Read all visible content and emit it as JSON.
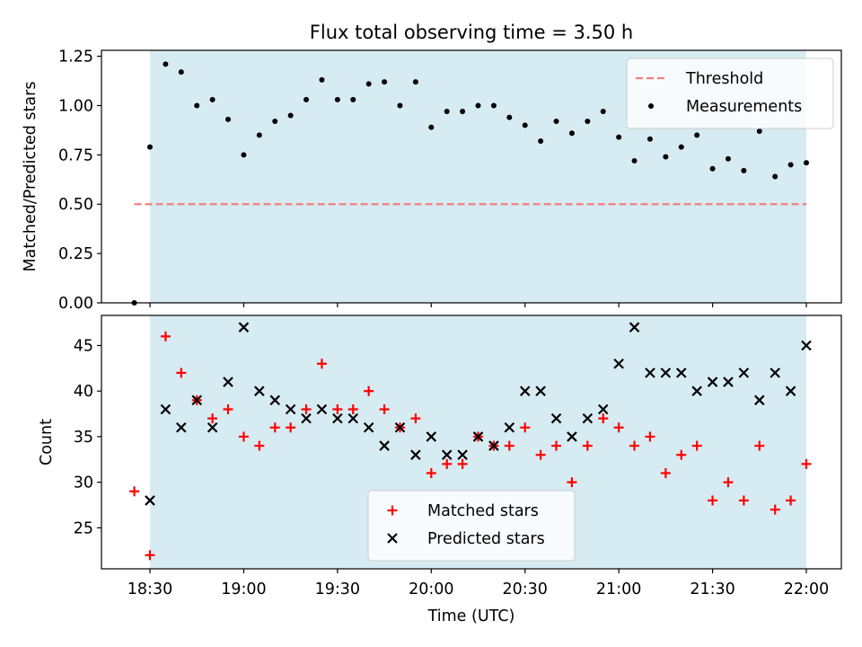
{
  "chart_data": {
    "type": "scatter",
    "title": "Flux total observing time = 3.50 h",
    "xlabel": "Time (UTC)",
    "x_tick_labels": [
      "18:30",
      "19:00",
      "19:30",
      "20:00",
      "20:30",
      "21:00",
      "21:30",
      "22:00"
    ],
    "times": [
      "18:25",
      "18:30",
      "18:35",
      "18:40",
      "18:45",
      "18:50",
      "18:55",
      "19:00",
      "19:05",
      "19:10",
      "19:15",
      "19:20",
      "19:25",
      "19:30",
      "19:35",
      "19:40",
      "19:45",
      "19:50",
      "19:55",
      "20:00",
      "20:05",
      "20:10",
      "20:15",
      "20:20",
      "20:25",
      "20:30",
      "20:35",
      "20:40",
      "20:45",
      "20:50",
      "20:55",
      "21:00",
      "21:05",
      "21:10",
      "21:15",
      "21:20",
      "21:25",
      "21:30",
      "21:35",
      "21:40",
      "21:45",
      "21:50",
      "21:55",
      "22:00"
    ],
    "shaded_interval": [
      "18:30",
      "22:00"
    ],
    "shade_color": "#add8e6",
    "panels": [
      {
        "ylabel": "Matched/Predicted stars",
        "ylim": [
          0,
          1.28
        ],
        "y_ticks": [
          "0.00",
          "0.25",
          "0.50",
          "0.75",
          "1.00",
          "1.25"
        ],
        "threshold": {
          "name": "Threshold",
          "value": 0.5,
          "x_range": [
            "18:25",
            "22:00"
          ],
          "color": "#f08080"
        },
        "series": [
          {
            "name": "Measurements",
            "marker": "dot",
            "color": "#000000",
            "values": [
              0.0,
              0.79,
              1.21,
              1.17,
              1.0,
              1.03,
              0.93,
              0.75,
              0.85,
              0.92,
              0.95,
              1.03,
              1.13,
              1.03,
              1.03,
              1.11,
              1.12,
              1.0,
              1.12,
              0.89,
              0.97,
              0.97,
              1.0,
              1.0,
              0.94,
              0.9,
              0.82,
              0.92,
              0.86,
              0.92,
              0.97,
              0.84,
              0.72,
              0.83,
              0.74,
              0.79,
              0.85,
              0.68,
              0.73,
              0.67,
              0.87,
              0.64,
              0.7,
              0.71
            ]
          }
        ],
        "legend_position": "top-right"
      },
      {
        "ylabel": "Count",
        "ylim": [
          20.5,
          48.3
        ],
        "y_ticks": [
          "25",
          "30",
          "35",
          "40",
          "45"
        ],
        "series": [
          {
            "name": "Matched stars",
            "marker": "plus",
            "color": "#ff0000",
            "values": [
              29,
              22,
              46,
              42,
              39,
              37,
              38,
              35,
              34,
              36,
              36,
              38,
              43,
              38,
              38,
              40,
              38,
              36,
              37,
              31,
              32,
              32,
              35,
              34,
              34,
              36,
              33,
              34,
              30,
              34,
              37,
              36,
              34,
              35,
              31,
              33,
              34,
              28,
              30,
              28,
              34,
              27,
              28,
              32
            ]
          },
          {
            "name": "Predicted stars",
            "marker": "x",
            "color": "#000000",
            "values": [
              null,
              28,
              38,
              36,
              39,
              36,
              41,
              47,
              40,
              39,
              38,
              37,
              38,
              37,
              37,
              36,
              34,
              36,
              33,
              35,
              33,
              33,
              35,
              34,
              36,
              40,
              40,
              37,
              35,
              37,
              38,
              43,
              47,
              42,
              42,
              42,
              40,
              41,
              41,
              42,
              39,
              42,
              40,
              45
            ]
          }
        ],
        "legend_position": "lower-center"
      }
    ]
  }
}
